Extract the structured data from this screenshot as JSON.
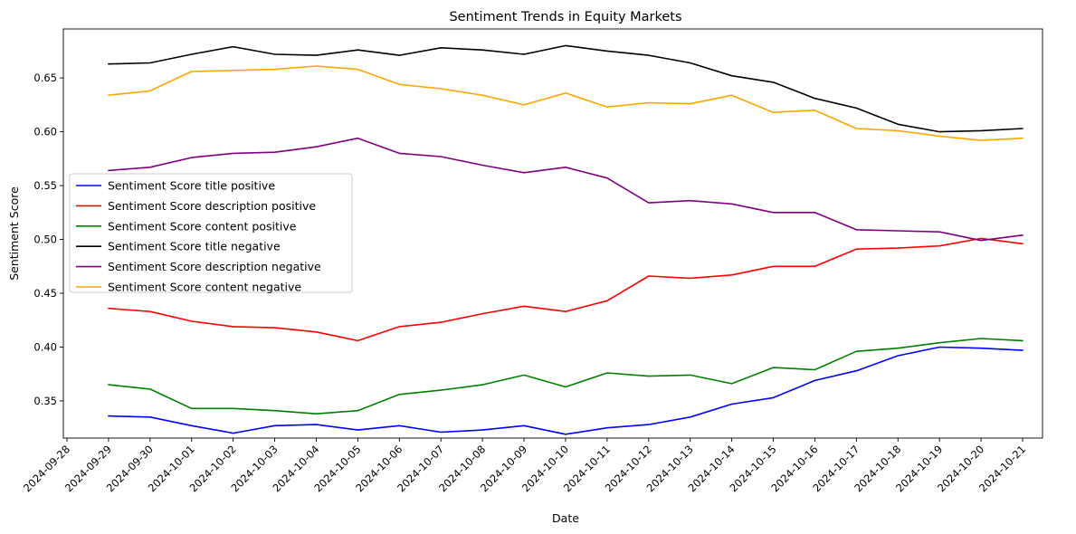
{
  "chart_data": {
    "type": "line",
    "title": "Sentiment Trends in Equity Markets",
    "xlabel": "Date",
    "ylabel": "Sentiment Score",
    "x_ticks": [
      "2024-09-28",
      "2024-09-29",
      "2024-09-30",
      "2024-10-01",
      "2024-10-02",
      "2024-10-03",
      "2024-10-04",
      "2024-10-05",
      "2024-10-06",
      "2024-10-07",
      "2024-10-08",
      "2024-10-09",
      "2024-10-10",
      "2024-10-11",
      "2024-10-12",
      "2024-10-13",
      "2024-10-14",
      "2024-10-15",
      "2024-10-16",
      "2024-10-17",
      "2024-10-18",
      "2024-10-19",
      "2024-10-20",
      "2024-10-21"
    ],
    "x": [
      "2024-09-29",
      "2024-09-30",
      "2024-10-01",
      "2024-10-02",
      "2024-10-03",
      "2024-10-04",
      "2024-10-05",
      "2024-10-06",
      "2024-10-07",
      "2024-10-08",
      "2024-10-09",
      "2024-10-10",
      "2024-10-11",
      "2024-10-12",
      "2024-10-13",
      "2024-10-14",
      "2024-10-15",
      "2024-10-16",
      "2024-10-17",
      "2024-10-18",
      "2024-10-19",
      "2024-10-20",
      "2024-10-21"
    ],
    "xlim": [
      "2024-09-28",
      "2024-10-21"
    ],
    "y_ticks": [
      0.35,
      0.4,
      0.45,
      0.5,
      0.55,
      0.6,
      0.65
    ],
    "y_tick_labels": [
      "0.35",
      "0.40",
      "0.45",
      "0.50",
      "0.55",
      "0.60",
      "0.65"
    ],
    "ylim": [
      0.3155,
      0.6955
    ],
    "grid": false,
    "legend_position": "center-left",
    "series": [
      {
        "name": "Sentiment Score title positive",
        "color": "#0000ff",
        "values": [
          0.336,
          0.335,
          0.327,
          0.32,
          0.327,
          0.328,
          0.323,
          0.327,
          0.321,
          0.323,
          0.327,
          0.319,
          0.325,
          0.328,
          0.335,
          0.347,
          0.353,
          0.369,
          0.378,
          0.392,
          0.4,
          0.399,
          0.397
        ]
      },
      {
        "name": "Sentiment Score description positive",
        "color": "#ff0000",
        "values": [
          0.436,
          0.433,
          0.424,
          0.419,
          0.418,
          0.414,
          0.406,
          0.419,
          0.423,
          0.431,
          0.438,
          0.433,
          0.443,
          0.466,
          0.464,
          0.467,
          0.475,
          0.475,
          0.491,
          0.492,
          0.494,
          0.501,
          0.496
        ]
      },
      {
        "name": "Sentiment Score content positive",
        "color": "#008000",
        "values": [
          0.365,
          0.361,
          0.343,
          0.343,
          0.341,
          0.338,
          0.341,
          0.356,
          0.36,
          0.365,
          0.374,
          0.363,
          0.376,
          0.373,
          0.374,
          0.366,
          0.381,
          0.379,
          0.396,
          0.399,
          0.404,
          0.408,
          0.406
        ]
      },
      {
        "name": "Sentiment Score title negative",
        "color": "#000000",
        "values": [
          0.663,
          0.664,
          0.672,
          0.679,
          0.672,
          0.671,
          0.676,
          0.671,
          0.678,
          0.676,
          0.672,
          0.68,
          0.675,
          0.671,
          0.664,
          0.652,
          0.646,
          0.631,
          0.622,
          0.607,
          0.6,
          0.601,
          0.603
        ]
      },
      {
        "name": "Sentiment Score description negative",
        "color": "#800080",
        "values": [
          0.564,
          0.567,
          0.576,
          0.58,
          0.581,
          0.586,
          0.594,
          0.58,
          0.577,
          0.569,
          0.562,
          0.567,
          0.557,
          0.534,
          0.536,
          0.533,
          0.525,
          0.525,
          0.509,
          0.508,
          0.507,
          0.499,
          0.504
        ]
      },
      {
        "name": "Sentiment Score content negative",
        "color": "#ffa500",
        "values": [
          0.634,
          0.638,
          0.656,
          0.657,
          0.658,
          0.661,
          0.658,
          0.644,
          0.64,
          0.634,
          0.625,
          0.636,
          0.623,
          0.627,
          0.626,
          0.634,
          0.618,
          0.62,
          0.603,
          0.601,
          0.596,
          0.592,
          0.594
        ]
      }
    ]
  }
}
